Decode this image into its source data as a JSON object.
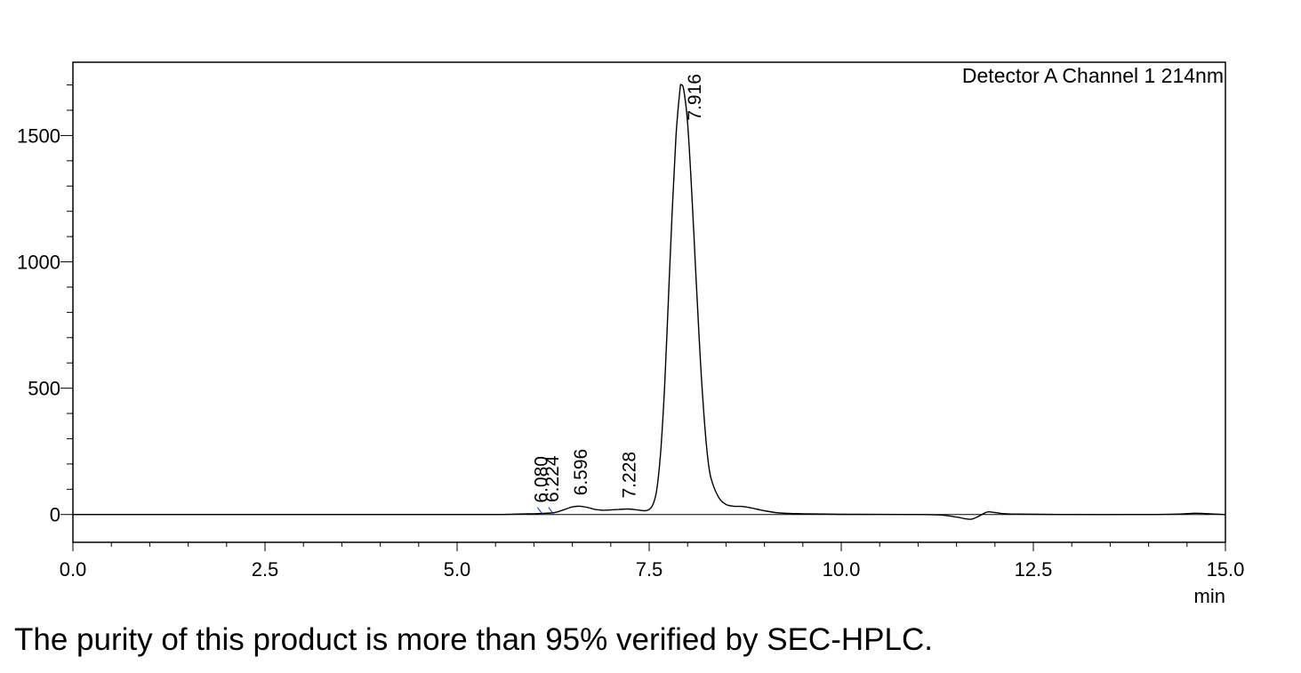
{
  "chart_data": {
    "type": "line",
    "annotation": "Detector A Channel 1 214nm",
    "x_unit": "min",
    "xlim": [
      0,
      15
    ],
    "ylim": [
      -110,
      1790
    ],
    "x_ticks": [
      "0.0",
      "2.5",
      "5.0",
      "7.5",
      "10.0",
      "12.5",
      "15.0"
    ],
    "x_tick_values": [
      0,
      2.5,
      5,
      7.5,
      10,
      12.5,
      15
    ],
    "y_ticks": [
      "0",
      "500",
      "1000",
      "1500"
    ],
    "y_tick_values": [
      0,
      500,
      1000,
      1500
    ],
    "peaks": [
      {
        "label": "6.080",
        "rt": 6.08
      },
      {
        "label": "6.224",
        "rt": 6.224
      },
      {
        "label": "6.596",
        "rt": 6.596
      },
      {
        "label": "7.228",
        "rt": 7.228
      },
      {
        "label": "7.916",
        "rt": 7.916
      }
    ],
    "series": [
      {
        "x": [
          0,
          1,
          2,
          3,
          4,
          5,
          5.5,
          5.8,
          6.0,
          6.08,
          6.15,
          6.224,
          6.3,
          6.4,
          6.5,
          6.596,
          6.7,
          6.8,
          6.9,
          7.0,
          7.1,
          7.228,
          7.35,
          7.45,
          7.5,
          7.55,
          7.6,
          7.65,
          7.7,
          7.75,
          7.8,
          7.85,
          7.9,
          7.916,
          7.95,
          8.0,
          8.05,
          8.1,
          8.15,
          8.2,
          8.25,
          8.3,
          8.4,
          8.5,
          8.6,
          8.7,
          8.8,
          9.0,
          9.2,
          9.5,
          10,
          11,
          11.3,
          11.5,
          11.6,
          11.7,
          11.8,
          11.9,
          12.0,
          12.2,
          13,
          14,
          14.4,
          14.6,
          14.8,
          15
        ],
        "y": [
          0,
          0,
          0,
          0,
          0,
          0,
          0,
          2,
          3,
          4,
          5,
          6,
          10,
          20,
          30,
          33,
          28,
          20,
          17,
          18,
          20,
          22,
          18,
          15,
          20,
          40,
          100,
          250,
          500,
          850,
          1200,
          1500,
          1680,
          1700,
          1680,
          1550,
          1300,
          1000,
          700,
          450,
          260,
          150,
          70,
          40,
          33,
          32,
          28,
          15,
          6,
          3,
          1,
          0,
          -2,
          -10,
          -16,
          -18,
          -5,
          10,
          8,
          2,
          0,
          0,
          2,
          5,
          3,
          0
        ]
      }
    ]
  },
  "caption": "The purity of this product is more than 95% verified by SEC-HPLC."
}
